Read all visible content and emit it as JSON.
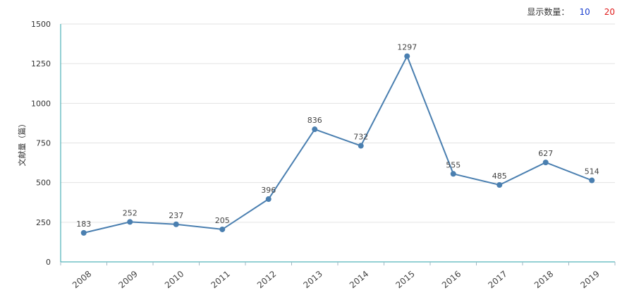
{
  "toolbar": {
    "label": "显示数量：",
    "option_10": "10",
    "option_20": "20"
  },
  "chart_data": {
    "type": "line",
    "title": "",
    "xlabel": "",
    "ylabel": "文献量（篇）",
    "ylim": [
      0,
      1500
    ],
    "yticks": [
      0,
      250,
      500,
      750,
      1000,
      1250,
      1500
    ],
    "grid": true,
    "categories": [
      "2008",
      "2009",
      "2010",
      "2011",
      "2012",
      "2013",
      "2014",
      "2015",
      "2016",
      "2017",
      "2018",
      "2019"
    ],
    "series": [
      {
        "values": [
          183,
          252,
          237,
          205,
          396,
          836,
          732,
          1297,
          555,
          485,
          627,
          514
        ]
      }
    ],
    "data_labels": true,
    "line_color": "#4a7fb0",
    "axis_color": "#2aa0a8"
  }
}
